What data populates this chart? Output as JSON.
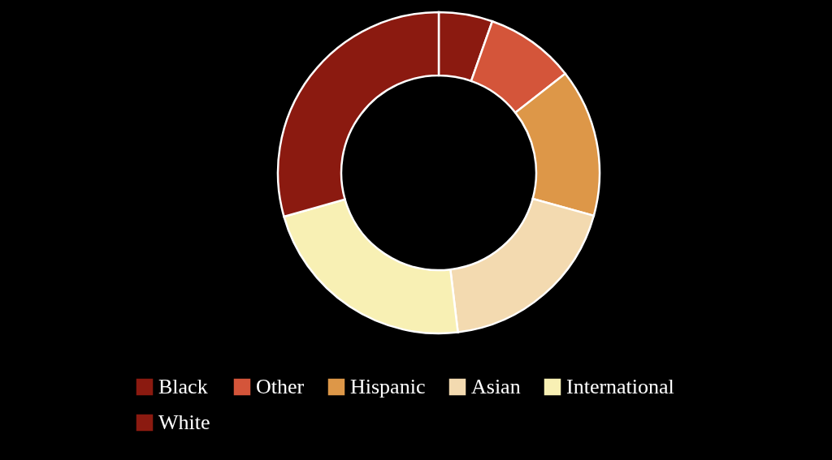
{
  "chart_data": {
    "type": "donut",
    "categories": [
      "Black",
      "Other",
      "Hispanic",
      "Asian",
      "International",
      "White"
    ],
    "values": [
      5.4,
      9.0,
      14.9,
      18.8,
      22.5,
      29.4
    ],
    "colors": [
      "#8b1a10",
      "#d4553a",
      "#dd9748",
      "#f3dab0",
      "#f8f0b4",
      "#8b1a10"
    ],
    "legend": "bottom"
  }
}
